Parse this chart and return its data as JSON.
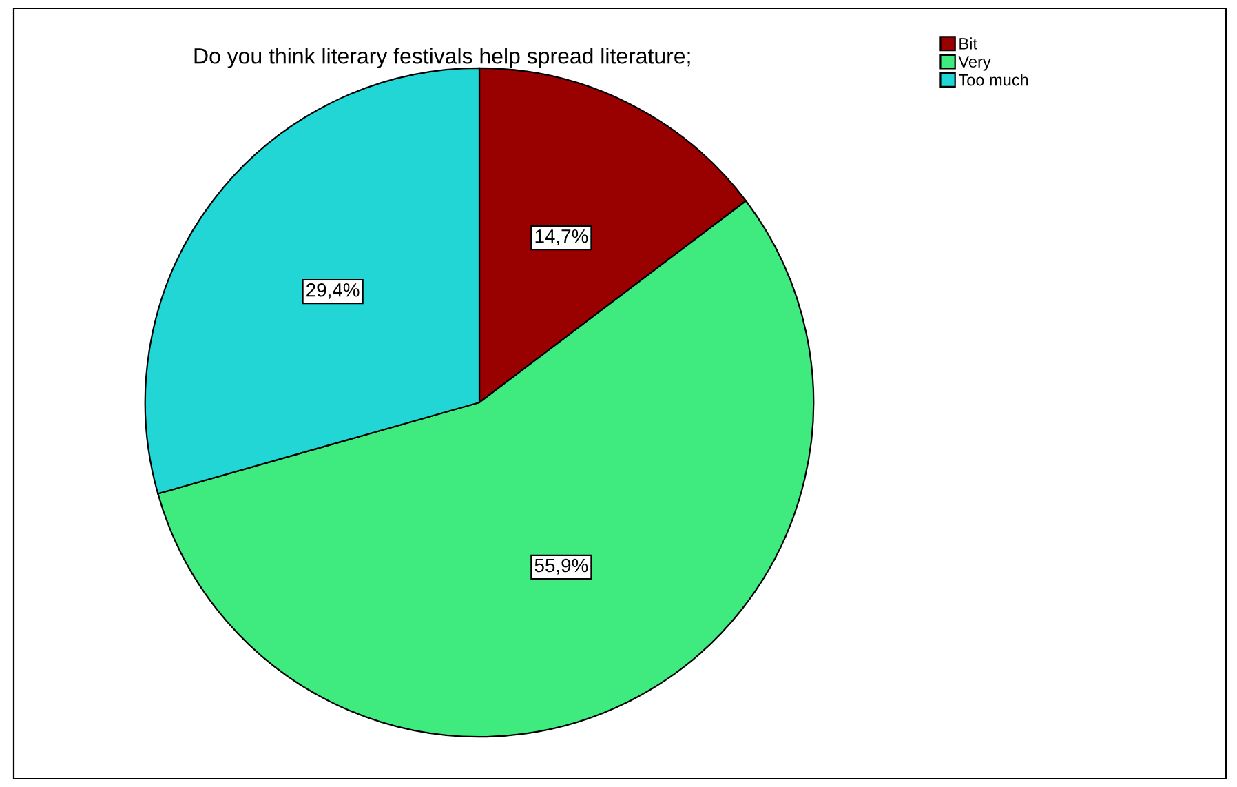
{
  "chart_data": {
    "type": "pie",
    "title": "Do you think literary festivals help spread literature;",
    "categories": [
      "Bit",
      "Very",
      "Too much"
    ],
    "values": [
      14.7,
      55.9,
      29.4
    ],
    "colors": [
      "#990000",
      "#3fea7f",
      "#22d6d6"
    ],
    "value_labels": [
      "14,7%",
      "55,9%",
      "29,4%"
    ],
    "legend": "top right"
  }
}
